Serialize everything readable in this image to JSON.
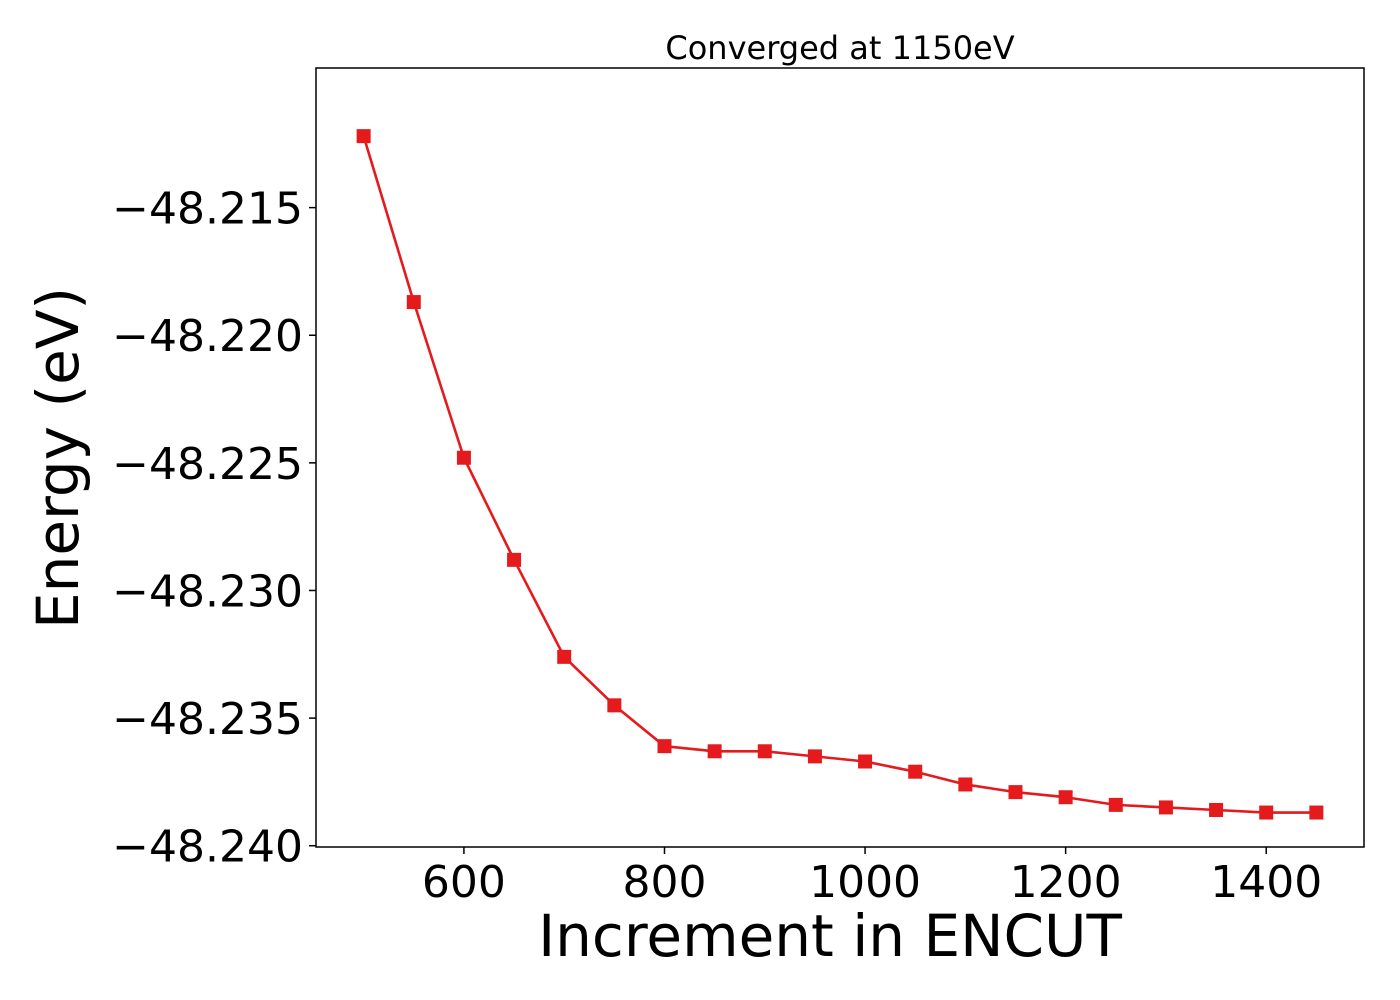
{
  "chart_data": {
    "type": "line",
    "title": "Converged at 1150eV",
    "xlabel": "Increment in ENCUT",
    "ylabel": "Energy (eV)",
    "xlim": [
      452.5,
      1497.5
    ],
    "ylim": [
      -48.24005,
      -48.20953
    ],
    "grid": false,
    "x_ticks": [
      {
        "value": 600,
        "label": "600"
      },
      {
        "value": 800,
        "label": "800"
      },
      {
        "value": 1000,
        "label": "1000"
      },
      {
        "value": 1200,
        "label": "1200"
      },
      {
        "value": 1400,
        "label": "1400"
      }
    ],
    "y_ticks": [
      {
        "value": -48.215,
        "label": "−48.215"
      },
      {
        "value": -48.22,
        "label": "−48.220"
      },
      {
        "value": -48.225,
        "label": "−48.225"
      },
      {
        "value": -48.23,
        "label": "−48.230"
      },
      {
        "value": -48.235,
        "label": "−48.235"
      },
      {
        "value": -48.24,
        "label": "−48.240"
      }
    ],
    "series": [
      {
        "color": "#e41a1c",
        "marker": "square",
        "points": [
          {
            "x": 500,
            "y": -48.2122
          },
          {
            "x": 550,
            "y": -48.2187
          },
          {
            "x": 600,
            "y": -48.2248
          },
          {
            "x": 650,
            "y": -48.2288
          },
          {
            "x": 700,
            "y": -48.2326
          },
          {
            "x": 750,
            "y": -48.2345
          },
          {
            "x": 800,
            "y": -48.2361
          },
          {
            "x": 850,
            "y": -48.2363
          },
          {
            "x": 900,
            "y": -48.2363
          },
          {
            "x": 950,
            "y": -48.2365
          },
          {
            "x": 1000,
            "y": -48.2367
          },
          {
            "x": 1050,
            "y": -48.2371
          },
          {
            "x": 1100,
            "y": -48.2376
          },
          {
            "x": 1150,
            "y": -48.2379
          },
          {
            "x": 1200,
            "y": -48.2381
          },
          {
            "x": 1250,
            "y": -48.2384
          },
          {
            "x": 1300,
            "y": -48.2385
          },
          {
            "x": 1350,
            "y": -48.2386
          },
          {
            "x": 1400,
            "y": -48.2387
          },
          {
            "x": 1450,
            "y": -48.2387
          }
        ]
      }
    ]
  }
}
